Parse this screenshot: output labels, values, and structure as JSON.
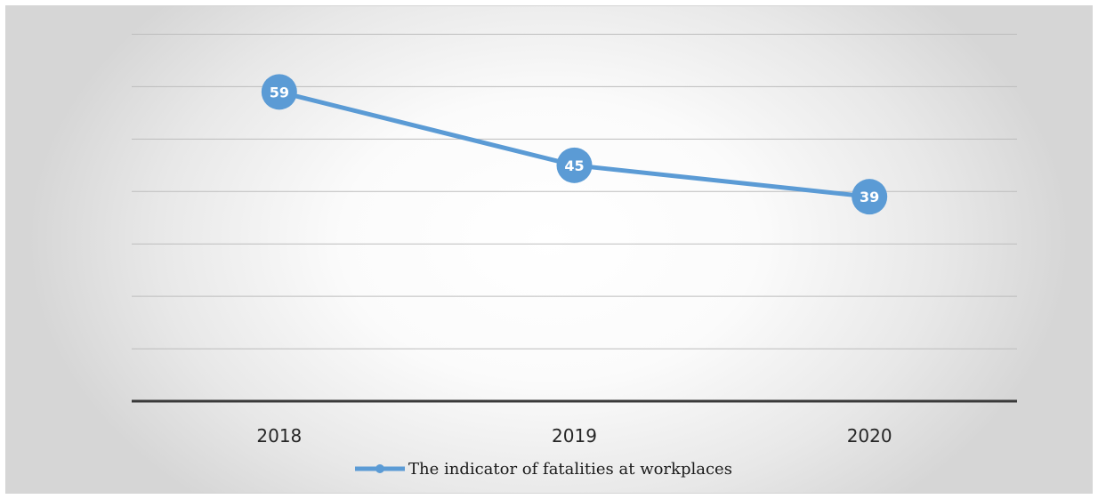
{
  "chart_data": {
    "type": "line",
    "title": "",
    "xlabel": "",
    "ylabel": "",
    "categories": [
      "2018",
      "2019",
      "2020"
    ],
    "series": [
      {
        "name": "The indicator of fatalities at workplaces",
        "values": [
          59,
          45,
          39
        ],
        "color": "#5b9bd5"
      }
    ],
    "ylim": [
      0,
      70
    ],
    "gridlines": true,
    "y_tick_labels_visible": false,
    "data_labels": true,
    "legend": "bottom"
  }
}
